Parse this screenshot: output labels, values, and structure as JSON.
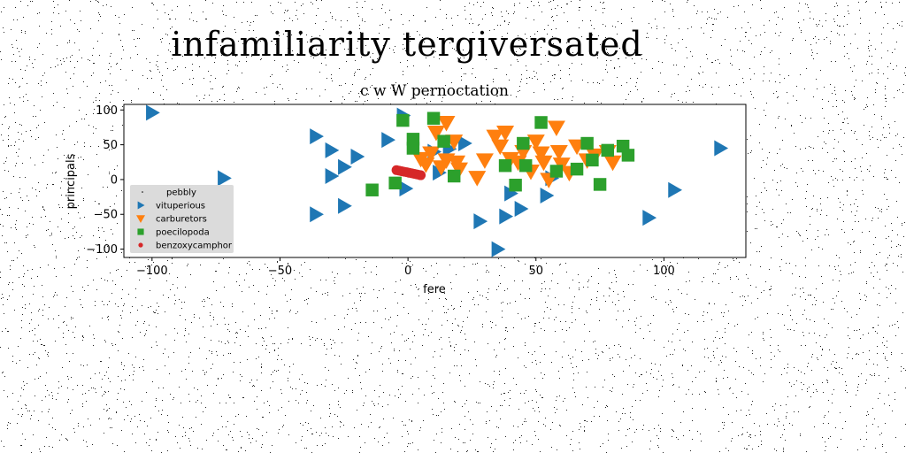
{
  "figure_title": "infamiliarity tergiversated",
  "chart_data": {
    "type": "scatter",
    "title": "c w W pernoctation",
    "xlabel": "fere",
    "ylabel": "principals",
    "xlim": [
      -111,
      132
    ],
    "ylim": [
      -112,
      108
    ],
    "xticks": [
      -100,
      -50,
      0,
      50,
      100
    ],
    "yticks": [
      -100,
      -50,
      0,
      50,
      100
    ],
    "xtick_labels": [
      "−100",
      "−50",
      "0",
      "50",
      "100"
    ],
    "ytick_labels": [
      "−100",
      "−50",
      "0",
      "50",
      "100"
    ],
    "grid": false,
    "legend_position": "lower-left",
    "series": [
      {
        "name": "pebbly",
        "marker": "point",
        "color": "#000000",
        "points": []
      },
      {
        "name": "vituperious",
        "marker": "triangle-right",
        "color": "#1f77b4",
        "points": [
          [
            -100,
            96
          ],
          [
            -72,
            2
          ],
          [
            -36,
            62
          ],
          [
            -30,
            42
          ],
          [
            -30,
            5
          ],
          [
            -25,
            18
          ],
          [
            -20,
            33
          ],
          [
            -36,
            -50
          ],
          [
            -25,
            -38
          ],
          [
            -8,
            57
          ],
          [
            -2,
            92
          ],
          [
            -1,
            -13
          ],
          [
            10,
            40
          ],
          [
            12,
            10
          ],
          [
            16,
            44
          ],
          [
            22,
            52
          ],
          [
            28,
            -60
          ],
          [
            35,
            -100
          ],
          [
            38,
            -53
          ],
          [
            40,
            -20
          ],
          [
            44,
            -42
          ],
          [
            54,
            -23
          ],
          [
            56,
            2
          ],
          [
            104,
            -15
          ],
          [
            94,
            -55
          ],
          [
            122,
            45
          ]
        ]
      },
      {
        "name": "carburetors",
        "marker": "triangle-down",
        "color": "#ff7f0e",
        "points": [
          [
            5,
            30
          ],
          [
            7,
            22
          ],
          [
            9,
            38
          ],
          [
            11,
            68
          ],
          [
            13,
            18
          ],
          [
            15,
            82
          ],
          [
            15,
            28
          ],
          [
            18,
            55
          ],
          [
            19,
            25
          ],
          [
            20,
            15
          ],
          [
            27,
            3
          ],
          [
            30,
            28
          ],
          [
            34,
            62
          ],
          [
            36,
            48
          ],
          [
            38,
            68
          ],
          [
            40,
            30
          ],
          [
            43,
            25
          ],
          [
            45,
            40
          ],
          [
            48,
            12
          ],
          [
            50,
            55
          ],
          [
            52,
            38
          ],
          [
            53,
            25
          ],
          [
            55,
            0
          ],
          [
            59,
            40
          ],
          [
            60,
            22
          ],
          [
            58,
            75
          ],
          [
            63,
            10
          ],
          [
            66,
            48
          ],
          [
            70,
            28
          ],
          [
            73,
            35
          ],
          [
            78,
            40
          ],
          [
            80,
            25
          ]
        ]
      },
      {
        "name": "poecilopoda",
        "marker": "square",
        "color": "#2ca02c",
        "points": [
          [
            -14,
            -15
          ],
          [
            -5,
            -5
          ],
          [
            -2,
            85
          ],
          [
            2,
            58
          ],
          [
            2,
            45
          ],
          [
            10,
            88
          ],
          [
            14,
            55
          ],
          [
            18,
            5
          ],
          [
            38,
            20
          ],
          [
            42,
            -8
          ],
          [
            45,
            52
          ],
          [
            46,
            20
          ],
          [
            52,
            82
          ],
          [
            58,
            12
          ],
          [
            66,
            15
          ],
          [
            70,
            52
          ],
          [
            72,
            28
          ],
          [
            75,
            -7
          ],
          [
            78,
            42
          ],
          [
            84,
            48
          ],
          [
            86,
            35
          ]
        ]
      },
      {
        "name": "benzoxycamphor",
        "marker": "circle",
        "color": "#d62728",
        "points": [
          [
            -4.5,
            13.5
          ],
          [
            -3.5,
            12.8
          ],
          [
            -2.5,
            12.0
          ],
          [
            -1.5,
            11.2
          ],
          [
            -0.5,
            10.5
          ],
          [
            0.5,
            9.7
          ],
          [
            1.5,
            9.0
          ],
          [
            2.5,
            8.2
          ],
          [
            3.5,
            7.4
          ],
          [
            4.5,
            6.6
          ],
          [
            5.0,
            6.2
          ]
        ]
      }
    ]
  }
}
